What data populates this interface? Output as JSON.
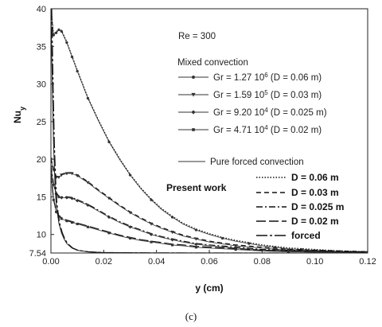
{
  "chart_data": {
    "type": "line",
    "title": "",
    "xlabel": "y (cm)",
    "ylabel": "Nu",
    "ylabel_subscript": "y",
    "xlim": [
      0,
      0.12
    ],
    "ylim": [
      7.54,
      40
    ],
    "x_ticks": [
      "0.00",
      "0.02",
      "0.04",
      "0.06",
      "0.08",
      "0.10",
      "0.12"
    ],
    "y_ticks": [
      "7.54",
      "10",
      "15",
      "20",
      "25",
      "30",
      "35",
      "40"
    ],
    "asymptote": 7.54,
    "grid": false,
    "legend_position": "top-right",
    "annotation": "Re = 300",
    "mixed_header": "Mixed convection",
    "forced_header": "Pure forced convection",
    "present_header": "Present work",
    "mixed_series": [
      {
        "label": "Gr = 1.27 10",
        "sup": "6",
        "suffix": " (D = 0.06 m)",
        "marker": "circle",
        "points": [
          [
            0.0,
            40
          ],
          [
            0.001,
            36.5
          ],
          [
            0.002,
            36.8
          ],
          [
            0.003,
            37.2
          ],
          [
            0.004,
            37.0
          ],
          [
            0.006,
            35.5
          ],
          [
            0.008,
            33.6
          ],
          [
            0.01,
            31.7
          ],
          [
            0.014,
            28.1
          ],
          [
            0.018,
            25.1
          ],
          [
            0.022,
            22.3
          ],
          [
            0.026,
            20.0
          ],
          [
            0.03,
            17.9
          ],
          [
            0.034,
            16.1
          ],
          [
            0.038,
            14.6
          ],
          [
            0.042,
            13.3
          ],
          [
            0.046,
            12.3
          ],
          [
            0.05,
            11.4
          ],
          [
            0.055,
            10.6
          ],
          [
            0.06,
            10.0
          ],
          [
            0.065,
            9.5
          ],
          [
            0.07,
            9.1
          ],
          [
            0.075,
            8.8
          ],
          [
            0.08,
            8.5
          ],
          [
            0.085,
            8.3
          ],
          [
            0.09,
            8.1
          ],
          [
            0.095,
            8.0
          ],
          [
            0.1,
            7.9
          ],
          [
            0.11,
            7.7
          ],
          [
            0.12,
            7.6
          ]
        ]
      },
      {
        "label": "Gr = 1.59 10",
        "sup": "5",
        "suffix": " (D = 0.03 m)",
        "marker": "triangle",
        "points": [
          [
            0.0,
            20
          ],
          [
            0.001,
            18.6
          ],
          [
            0.002,
            17.6
          ],
          [
            0.003,
            17.6
          ],
          [
            0.004,
            17.9
          ],
          [
            0.006,
            18.1
          ],
          [
            0.008,
            18.1
          ],
          [
            0.01,
            17.8
          ],
          [
            0.014,
            16.9
          ],
          [
            0.018,
            15.8
          ],
          [
            0.022,
            14.8
          ],
          [
            0.026,
            13.8
          ],
          [
            0.03,
            12.9
          ],
          [
            0.034,
            12.1
          ],
          [
            0.038,
            11.4
          ],
          [
            0.042,
            10.8
          ],
          [
            0.046,
            10.3
          ],
          [
            0.05,
            9.8
          ],
          [
            0.055,
            9.4
          ],
          [
            0.06,
            9.0
          ],
          [
            0.07,
            8.5
          ],
          [
            0.08,
            8.2
          ],
          [
            0.09,
            7.9
          ],
          [
            0.1,
            7.8
          ],
          [
            0.11,
            7.7
          ],
          [
            0.12,
            7.6
          ]
        ]
      },
      {
        "label": "Gr = 9.20 10",
        "sup": "4",
        "suffix": " (D = 0.025 m)",
        "marker": "diamond",
        "points": [
          [
            0.0,
            19
          ],
          [
            0.001,
            16.6
          ],
          [
            0.002,
            15.4
          ],
          [
            0.003,
            15.0
          ],
          [
            0.004,
            14.9
          ],
          [
            0.006,
            14.9
          ],
          [
            0.008,
            14.8
          ],
          [
            0.01,
            14.5
          ],
          [
            0.014,
            13.9
          ],
          [
            0.018,
            13.1
          ],
          [
            0.022,
            12.3
          ],
          [
            0.026,
            11.6
          ],
          [
            0.03,
            11.0
          ],
          [
            0.034,
            10.5
          ],
          [
            0.038,
            10.0
          ],
          [
            0.042,
            9.6
          ],
          [
            0.046,
            9.3
          ],
          [
            0.05,
            9.0
          ],
          [
            0.055,
            8.7
          ],
          [
            0.06,
            8.5
          ],
          [
            0.07,
            8.2
          ],
          [
            0.08,
            7.9
          ],
          [
            0.09,
            7.8
          ],
          [
            0.1,
            7.7
          ],
          [
            0.11,
            7.6
          ],
          [
            0.12,
            7.6
          ]
        ]
      },
      {
        "label": "Gr = 4.71 10",
        "sup": "4",
        "suffix": " (D = 0.02 m)",
        "marker": "square",
        "points": [
          [
            0.0,
            18
          ],
          [
            0.001,
            14.6
          ],
          [
            0.002,
            13.0
          ],
          [
            0.003,
            12.4
          ],
          [
            0.004,
            12.1
          ],
          [
            0.006,
            11.8
          ],
          [
            0.008,
            11.6
          ],
          [
            0.01,
            11.4
          ],
          [
            0.014,
            11.0
          ],
          [
            0.018,
            10.6
          ],
          [
            0.022,
            10.2
          ],
          [
            0.026,
            9.8
          ],
          [
            0.03,
            9.5
          ],
          [
            0.034,
            9.2
          ],
          [
            0.038,
            9.0
          ],
          [
            0.042,
            8.8
          ],
          [
            0.046,
            8.6
          ],
          [
            0.05,
            8.5
          ],
          [
            0.055,
            8.3
          ],
          [
            0.06,
            8.2
          ],
          [
            0.07,
            8.0
          ],
          [
            0.08,
            7.8
          ],
          [
            0.09,
            7.7
          ],
          [
            0.1,
            7.65
          ],
          [
            0.11,
            7.6
          ],
          [
            0.12,
            7.55
          ]
        ]
      }
    ],
    "forced_series": {
      "points": [
        [
          0.0,
          40
        ],
        [
          0.0005,
          30
        ],
        [
          0.001,
          22
        ],
        [
          0.0015,
          17
        ],
        [
          0.002,
          14
        ],
        [
          0.003,
          11.5
        ],
        [
          0.004,
          10.2
        ],
        [
          0.005,
          9.4
        ],
        [
          0.006,
          8.8
        ],
        [
          0.008,
          8.2
        ],
        [
          0.01,
          7.9
        ],
        [
          0.014,
          7.7
        ],
        [
          0.02,
          7.6
        ],
        [
          0.04,
          7.55
        ],
        [
          0.12,
          7.54
        ]
      ]
    },
    "present_legend": [
      {
        "label": "D = 0.06 m",
        "dash": "1.5,2"
      },
      {
        "label": "D = 0.03 m",
        "dash": "6,4"
      },
      {
        "label": "D = 0.025 m",
        "dash": "8,3,2,3"
      },
      {
        "label": "D = 0.02 m",
        "dash": "12,4"
      },
      {
        "label": "forced",
        "dash": "14,3,3,3"
      }
    ]
  },
  "caption": "(c)"
}
